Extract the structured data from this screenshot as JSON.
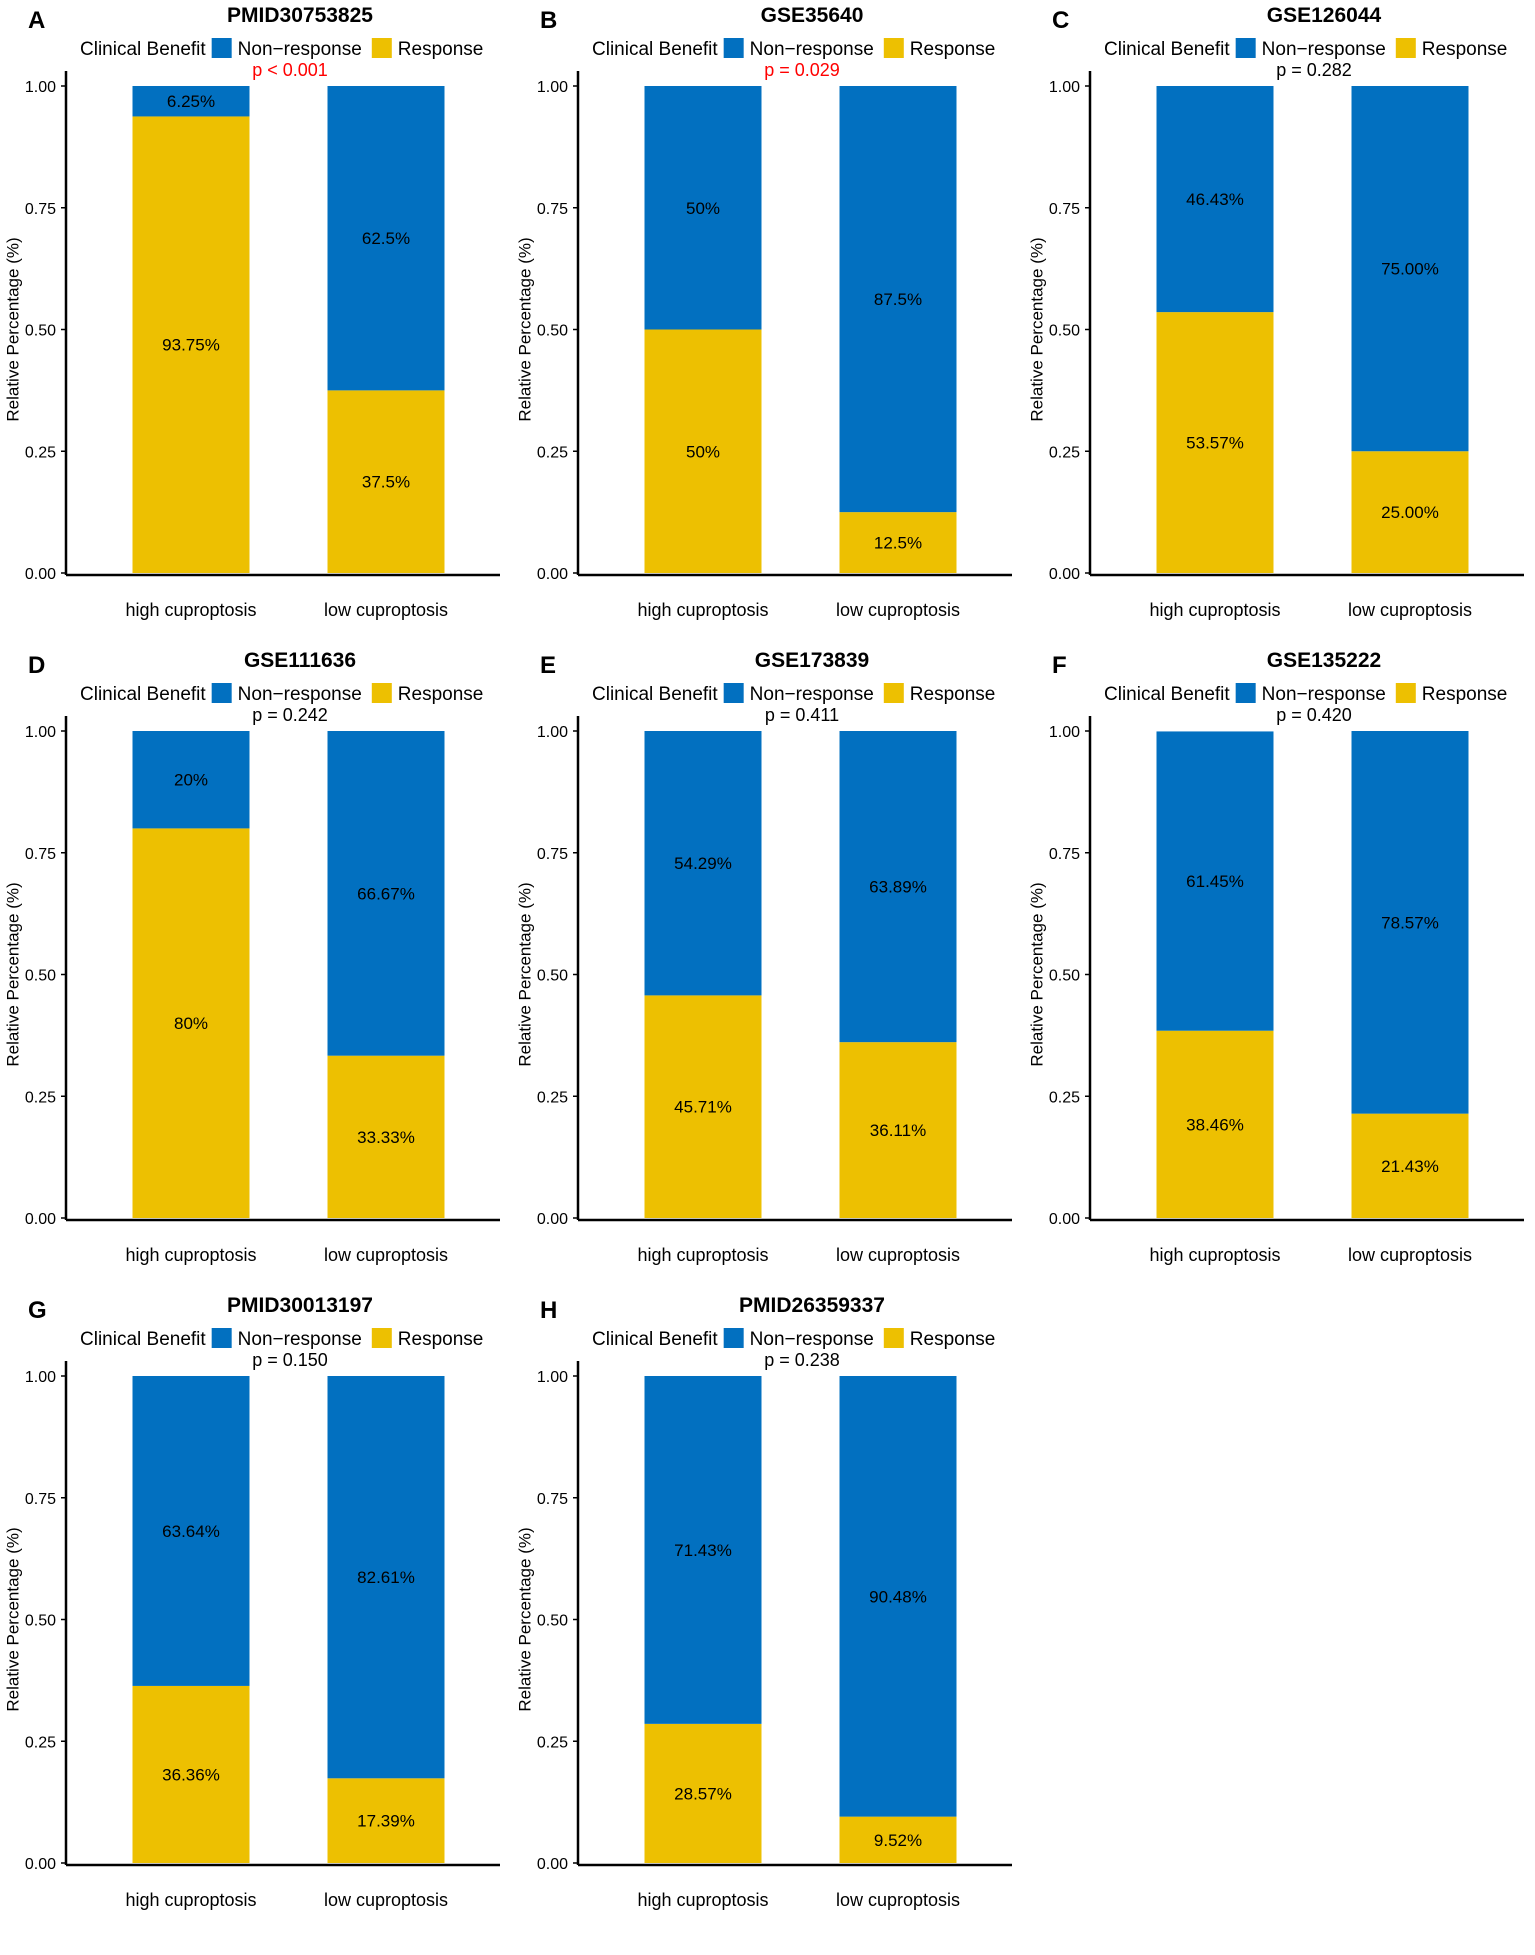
{
  "figure": {
    "panel_count": 8
  },
  "colors": {
    "non_response": "#0270C0",
    "response": "#EDC001",
    "significant_p": "#FF0000",
    "text": "#000000"
  },
  "chart_data": [
    {
      "type": "bar",
      "stacked": true,
      "panel": "A",
      "title": "PMID30753825",
      "p_value": "p < 0.001",
      "significant": true,
      "legend_title": "Clinical Benefit",
      "legend_position": "top",
      "legend": [
        "Non−response",
        "Response"
      ],
      "ylabel": "Relative Percentage (%)",
      "xlabel": "",
      "ylim": [
        0,
        1
      ],
      "yticks": [
        "0.00",
        "0.25",
        "0.50",
        "0.75",
        "1.00"
      ],
      "categories": [
        "high cuproptosis",
        "low cuproptosis"
      ],
      "series": [
        {
          "name": "Response",
          "values": [
            0.9375,
            0.375
          ],
          "labels": [
            "93.75%",
            "37.5%"
          ]
        },
        {
          "name": "Non−response",
          "values": [
            0.0625,
            0.625
          ],
          "labels": [
            "6.25%",
            "62.5%"
          ]
        }
      ]
    },
    {
      "type": "bar",
      "stacked": true,
      "panel": "B",
      "title": "GSE35640",
      "p_value": "p = 0.029",
      "significant": true,
      "legend_title": "Clinical Benefit",
      "legend_position": "top",
      "legend": [
        "Non−response",
        "Response"
      ],
      "ylabel": "Relative Percentage (%)",
      "xlabel": "",
      "ylim": [
        0,
        1
      ],
      "yticks": [
        "0.00",
        "0.25",
        "0.50",
        "0.75",
        "1.00"
      ],
      "categories": [
        "high cuproptosis",
        "low cuproptosis"
      ],
      "series": [
        {
          "name": "Response",
          "values": [
            0.5,
            0.125
          ],
          "labels": [
            "50%",
            "12.5%"
          ]
        },
        {
          "name": "Non−response",
          "values": [
            0.5,
            0.875
          ],
          "labels": [
            "50%",
            "87.5%"
          ]
        }
      ]
    },
    {
      "type": "bar",
      "stacked": true,
      "panel": "C",
      "title": "GSE126044",
      "p_value": "p = 0.282",
      "significant": false,
      "legend_title": "Clinical Benefit",
      "legend_position": "top",
      "legend": [
        "Non−response",
        "Response"
      ],
      "ylabel": "Relative Percentage (%)",
      "xlabel": "",
      "ylim": [
        0,
        1
      ],
      "yticks": [
        "0.00",
        "0.25",
        "0.50",
        "0.75",
        "1.00"
      ],
      "categories": [
        "high cuproptosis",
        "low cuproptosis"
      ],
      "series": [
        {
          "name": "Response",
          "values": [
            0.5357,
            0.25
          ],
          "labels": [
            "53.57%",
            "25.00%"
          ]
        },
        {
          "name": "Non−response",
          "values": [
            0.4643,
            0.75
          ],
          "labels": [
            "46.43%",
            "75.00%"
          ]
        }
      ]
    },
    {
      "type": "bar",
      "stacked": true,
      "panel": "D",
      "title": "GSE111636",
      "p_value": "p = 0.242",
      "significant": false,
      "legend_title": "Clinical Benefit",
      "legend_position": "top",
      "legend": [
        "Non−response",
        "Response"
      ],
      "ylabel": "Relative Percentage (%)",
      "xlabel": "",
      "ylim": [
        0,
        1
      ],
      "yticks": [
        "0.00",
        "0.25",
        "0.50",
        "0.75",
        "1.00"
      ],
      "categories": [
        "high cuproptosis",
        "low cuproptosis"
      ],
      "series": [
        {
          "name": "Response",
          "values": [
            0.8,
            0.3333
          ],
          "labels": [
            "80%",
            "33.33%"
          ]
        },
        {
          "name": "Non−response",
          "values": [
            0.2,
            0.6667
          ],
          "labels": [
            "20%",
            "66.67%"
          ]
        }
      ]
    },
    {
      "type": "bar",
      "stacked": true,
      "panel": "E",
      "title": "GSE173839",
      "p_value": "p = 0.411",
      "significant": false,
      "legend_title": "Clinical Benefit",
      "legend_position": "top",
      "legend": [
        "Non−response",
        "Response"
      ],
      "ylabel": "Relative Percentage (%)",
      "xlabel": "",
      "ylim": [
        0,
        1
      ],
      "yticks": [
        "0.00",
        "0.25",
        "0.50",
        "0.75",
        "1.00"
      ],
      "categories": [
        "high cuproptosis",
        "low cuproptosis"
      ],
      "series": [
        {
          "name": "Response",
          "values": [
            0.4571,
            0.3611
          ],
          "labels": [
            "45.71%",
            "36.11%"
          ]
        },
        {
          "name": "Non−response",
          "values": [
            0.5429,
            0.6389
          ],
          "labels": [
            "54.29%",
            "63.89%"
          ]
        }
      ]
    },
    {
      "type": "bar",
      "stacked": true,
      "panel": "F",
      "title": "GSE135222",
      "p_value": "p = 0.420",
      "significant": false,
      "legend_title": "Clinical Benefit",
      "legend_position": "top",
      "legend": [
        "Non−response",
        "Response"
      ],
      "ylabel": "Relative Percentage (%)",
      "xlabel": "",
      "ylim": [
        0,
        1
      ],
      "yticks": [
        "0.00",
        "0.25",
        "0.50",
        "0.75",
        "1.00"
      ],
      "categories": [
        "high cuproptosis",
        "low cuproptosis"
      ],
      "series": [
        {
          "name": "Response",
          "values": [
            0.3846,
            0.2143
          ],
          "labels": [
            "38.46%",
            "21.43%"
          ]
        },
        {
          "name": "Non−response",
          "values": [
            0.6145,
            0.7857
          ],
          "labels": [
            "61.45%",
            "78.57%"
          ]
        }
      ]
    },
    {
      "type": "bar",
      "stacked": true,
      "panel": "G",
      "title": "PMID30013197",
      "p_value": "p = 0.150",
      "significant": false,
      "legend_title": "Clinical Benefit",
      "legend_position": "top",
      "legend": [
        "Non−response",
        "Response"
      ],
      "ylabel": "Relative Percentage (%)",
      "xlabel": "",
      "ylim": [
        0,
        1
      ],
      "yticks": [
        "0.00",
        "0.25",
        "0.50",
        "0.75",
        "1.00"
      ],
      "categories": [
        "high cuproptosis",
        "low cuproptosis"
      ],
      "series": [
        {
          "name": "Response",
          "values": [
            0.3636,
            0.1739
          ],
          "labels": [
            "36.36%",
            "17.39%"
          ]
        },
        {
          "name": "Non−response",
          "values": [
            0.6364,
            0.8261
          ],
          "labels": [
            "63.64%",
            "82.61%"
          ]
        }
      ]
    },
    {
      "type": "bar",
      "stacked": true,
      "panel": "H",
      "title": "PMID26359337",
      "p_value": "p = 0.238",
      "significant": false,
      "legend_title": "Clinical Benefit",
      "legend_position": "top",
      "legend": [
        "Non−response",
        "Response"
      ],
      "ylabel": "Relative Percentage (%)",
      "xlabel": "",
      "ylim": [
        0,
        1
      ],
      "yticks": [
        "0.00",
        "0.25",
        "0.50",
        "0.75",
        "1.00"
      ],
      "categories": [
        "high cuproptosis",
        "low cuproptosis"
      ],
      "series": [
        {
          "name": "Response",
          "values": [
            0.2857,
            0.0952
          ],
          "labels": [
            "28.57%",
            "9.52%"
          ]
        },
        {
          "name": "Non−response",
          "values": [
            0.7143,
            0.9048
          ],
          "labels": [
            "71.43%",
            "90.48%"
          ]
        }
      ]
    }
  ]
}
